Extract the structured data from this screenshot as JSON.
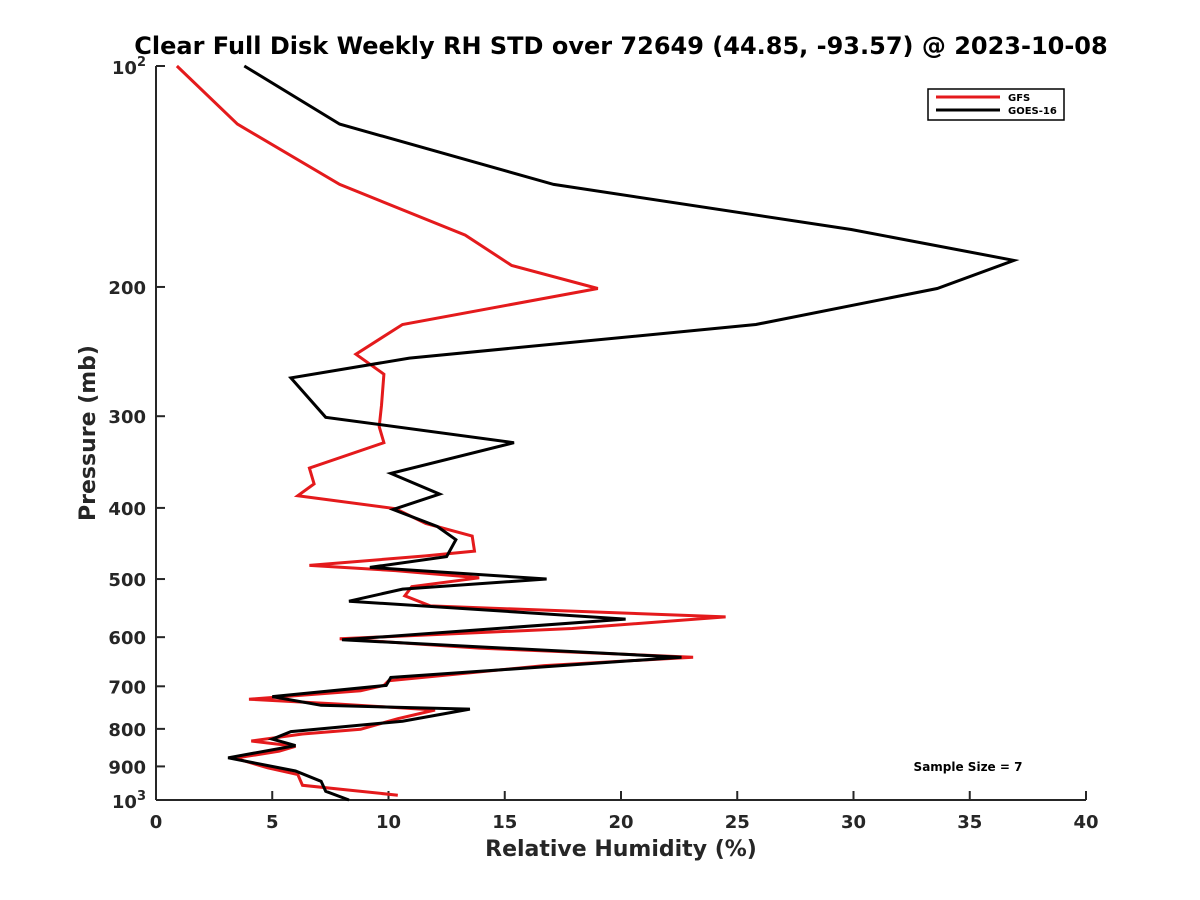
{
  "chart_data": {
    "type": "line",
    "title": "Clear Full Disk Weekly RH STD over 72649 (44.85, -93.57) @ 2023-10-08",
    "xlabel": "Relative Humidity (%)",
    "ylabel": "Pressure (mb)",
    "xlim": [
      0,
      40
    ],
    "ylim": [
      100,
      1000
    ],
    "yscale": "log",
    "y_reversed": true,
    "grid": false,
    "legend_position": "top-right",
    "x_ticks": [
      "0",
      "5",
      "10",
      "15",
      "20",
      "25",
      "30",
      "35",
      "40"
    ],
    "y_ticks": [
      {
        "value": 100,
        "base": "10",
        "exp": "2"
      },
      {
        "value": 200,
        "label": "200"
      },
      {
        "value": 300,
        "label": "300"
      },
      {
        "value": 400,
        "label": "400"
      },
      {
        "value": 500,
        "label": "500"
      },
      {
        "value": 600,
        "label": "600"
      },
      {
        "value": 700,
        "label": "700"
      },
      {
        "value": 800,
        "label": "800"
      },
      {
        "value": 900,
        "label": "900"
      },
      {
        "value": 1000,
        "base": "10",
        "exp": "3"
      }
    ],
    "series": [
      {
        "name": "GFS",
        "color": "#e41a1c",
        "points": [
          [
            0.9,
            100
          ],
          [
            3.5,
            120
          ],
          [
            7.9,
            145
          ],
          [
            13.3,
            170
          ],
          [
            15.3,
            187
          ],
          [
            19.0,
            201
          ],
          [
            10.6,
            225
          ],
          [
            8.6,
            247
          ],
          [
            9.8,
            263
          ],
          [
            9.7,
            290
          ],
          [
            9.6,
            310
          ],
          [
            9.8,
            326
          ],
          [
            6.6,
            353
          ],
          [
            6.8,
            371
          ],
          [
            6.1,
            385
          ],
          [
            10.3,
            401
          ],
          [
            11.6,
            420
          ],
          [
            13.6,
            437
          ],
          [
            13.7,
            458
          ],
          [
            11.6,
            465
          ],
          [
            6.6,
            479
          ],
          [
            10.3,
            487
          ],
          [
            13.9,
            498
          ],
          [
            11.0,
            512
          ],
          [
            10.7,
            527
          ],
          [
            11.8,
            544
          ],
          [
            24.5,
            563
          ],
          [
            17.9,
            584
          ],
          [
            7.9,
            603
          ],
          [
            13.9,
            621
          ],
          [
            23.1,
            639
          ],
          [
            16.7,
            656
          ],
          [
            10.0,
            688
          ],
          [
            9.8,
            698
          ],
          [
            8.8,
            710
          ],
          [
            4.0,
            729
          ],
          [
            7.8,
            740
          ],
          [
            12.0,
            754
          ],
          [
            10.4,
            775
          ],
          [
            8.8,
            801
          ],
          [
            6.3,
            813
          ],
          [
            4.1,
            831
          ],
          [
            6.0,
            845
          ],
          [
            5.3,
            858
          ],
          [
            3.4,
            877
          ],
          [
            4.8,
            904
          ],
          [
            6.1,
            923
          ],
          [
            6.3,
            955
          ],
          [
            8.1,
            968
          ],
          [
            10.4,
            985
          ]
        ]
      },
      {
        "name": "GOES-16",
        "color": "#000000",
        "points": [
          [
            3.8,
            100
          ],
          [
            7.9,
            120
          ],
          [
            17.1,
            145
          ],
          [
            29.9,
            167
          ],
          [
            36.9,
            184
          ],
          [
            33.6,
            201
          ],
          [
            25.8,
            225
          ],
          [
            10.9,
            250
          ],
          [
            5.8,
            266
          ],
          [
            7.3,
            301
          ],
          [
            15.4,
            326
          ],
          [
            10.1,
            359
          ],
          [
            12.2,
            383
          ],
          [
            10.2,
            402
          ],
          [
            12.1,
            424
          ],
          [
            12.9,
            442
          ],
          [
            12.5,
            466
          ],
          [
            9.2,
            482
          ],
          [
            16.8,
            500
          ],
          [
            10.6,
            516
          ],
          [
            8.3,
            536
          ],
          [
            20.2,
            567
          ],
          [
            8.0,
            605
          ],
          [
            22.6,
            639
          ],
          [
            10.1,
            681
          ],
          [
            9.9,
            698
          ],
          [
            5.0,
            723
          ],
          [
            7.1,
            743
          ],
          [
            13.5,
            752
          ],
          [
            10.6,
            781
          ],
          [
            5.8,
            807
          ],
          [
            5.0,
            826
          ],
          [
            6.0,
            843
          ],
          [
            3.1,
            876
          ],
          [
            6.0,
            913
          ],
          [
            7.1,
            943
          ],
          [
            7.3,
            973
          ],
          [
            8.3,
            1000
          ]
        ]
      }
    ],
    "annotations": [
      "Sample Size = 7"
    ]
  }
}
